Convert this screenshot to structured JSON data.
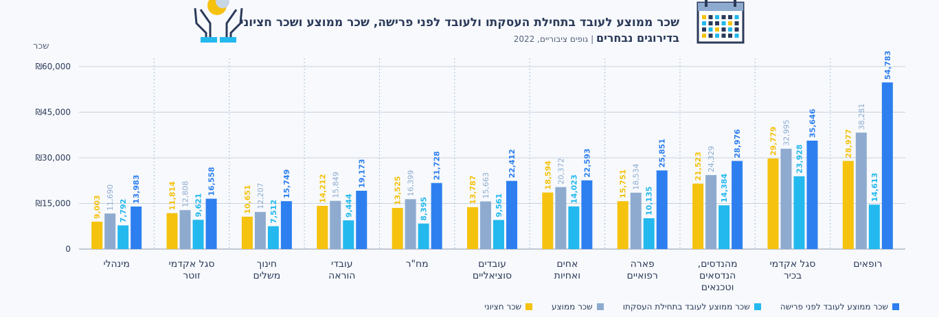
{
  "header": {
    "title_line1": "שכר ממוצע לעובד בתחילת העסקתו ולעובד לפני פרישה, שכר ממוצע ושכר חציוני",
    "title_line2": "בדירוגים נבחרים",
    "subtitle_separator": "|",
    "subtitle": "גופים ציבוריים, 2022"
  },
  "icons": {
    "left": "hands-holding-coin-icon",
    "right": "calendar-icon"
  },
  "colors": {
    "median": "#f5c20f",
    "average": "#8eabcf",
    "start": "#23b9ee",
    "retire": "#2d7ff0",
    "grid": "#c9d2de",
    "text": "#2b3a5a"
  },
  "chart_data": {
    "type": "bar",
    "ylabel": "שכר",
    "ylim": [
      0,
      60000
    ],
    "yticks": [
      0,
      15000,
      30000,
      45000,
      60000
    ],
    "ytick_labels": [
      "0",
      "₪15,000",
      "₪30,000",
      "₪45,000",
      "₪60,000"
    ],
    "grid": true,
    "legend_position": "bottom",
    "categories": [
      [
        "רופאים"
      ],
      [
        "סגל אקדמי",
        "בכיר"
      ],
      [
        "מהנדסים,",
        "הנדסאים",
        "וטכנאים"
      ],
      [
        "פארה",
        "רפואיים"
      ],
      [
        "אחים",
        "ואחיות"
      ],
      [
        "עובדים",
        "סוציאליים"
      ],
      [
        "מח\"ר"
      ],
      [
        "עובדי",
        "הוראה"
      ],
      [
        "חינוך",
        "משלים"
      ],
      [
        "סגל אקדמי",
        "זוטר"
      ],
      [
        "מינהלי"
      ]
    ],
    "series": [
      {
        "name": "שכר חציוני",
        "color_key": "median",
        "values": [
          28977,
          29779,
          21523,
          15751,
          18594,
          13787,
          13525,
          14212,
          10651,
          11814,
          9003
        ],
        "labels": [
          "28,977",
          "29,779",
          "21,523",
          "15,751",
          "18,594",
          "13,787",
          "13,525",
          "14,212",
          "10,651",
          "11,814",
          "9,003"
        ]
      },
      {
        "name": "שכר ממוצע",
        "color_key": "average",
        "values": [
          38281,
          32995,
          24329,
          18534,
          20372,
          15663,
          16399,
          15849,
          12207,
          12808,
          11690
        ],
        "labels": [
          "38,281",
          "32,995",
          "24,329",
          "18,534",
          "20,372",
          "15,663",
          "16,399",
          "15,849",
          "12,207",
          "12,808",
          "11,690"
        ]
      },
      {
        "name": "שכר ממוצע לעובד בתחילת העסקתו",
        "color_key": "start",
        "values": [
          14613,
          23928,
          14384,
          10135,
          14023,
          9561,
          8395,
          9444,
          7512,
          9621,
          7792
        ],
        "labels": [
          "14,613",
          "23,928",
          "14,384",
          "10,135",
          "14,023",
          "9,561",
          "8,395",
          "9,444",
          "7,512",
          "9,621",
          "7,792"
        ]
      },
      {
        "name": "שכר ממוצע לעובד לפני פרישה",
        "color_key": "retire",
        "values": [
          54783,
          35646,
          28976,
          25851,
          22593,
          22412,
          21728,
          19173,
          15749,
          16558,
          13983
        ],
        "labels": [
          "54,783",
          "35,646",
          "28,976",
          "25,851",
          "22,593",
          "22,412",
          "21,728",
          "19,173",
          "15,749",
          "16,558",
          "13,983"
        ]
      }
    ],
    "legend_order": [
      3,
      2,
      1,
      0
    ]
  }
}
